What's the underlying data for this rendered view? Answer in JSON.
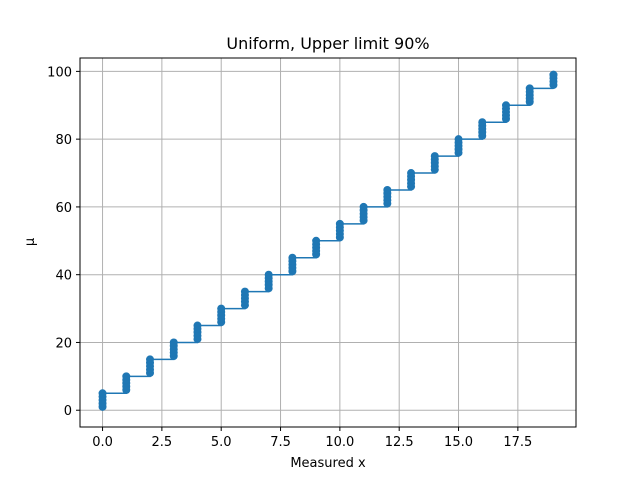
{
  "chart_data": {
    "type": "scatter",
    "title": "Uniform, Upper limit 90%",
    "xlabel": "Measured x",
    "ylabel": "μ",
    "xlim": [
      -0.95,
      19.95
    ],
    "ylim": [
      -4.95,
      103.95
    ],
    "xticks": [
      0.0,
      2.5,
      5.0,
      7.5,
      10.0,
      12.5,
      15.0,
      17.5
    ],
    "xtick_labels": [
      "0.0",
      "2.5",
      "5.0",
      "7.5",
      "10.0",
      "12.5",
      "15.0",
      "17.5"
    ],
    "yticks": [
      0,
      20,
      40,
      60,
      80,
      100
    ],
    "ytick_labels": [
      "0",
      "20",
      "40",
      "60",
      "80",
      "100"
    ],
    "grid": true,
    "series": [
      {
        "type": "line",
        "x": [
          0,
          1,
          1,
          2,
          2,
          3,
          3,
          4,
          4,
          5,
          5,
          6,
          6,
          7,
          7,
          8,
          8,
          9,
          9,
          10,
          10,
          11,
          11,
          12,
          12,
          13,
          13,
          14,
          14,
          15,
          15,
          16,
          16,
          17,
          17,
          18,
          18,
          19
        ],
        "y": [
          5,
          5,
          10,
          10,
          15,
          15,
          20,
          20,
          25,
          25,
          30,
          30,
          35,
          35,
          40,
          40,
          45,
          45,
          50,
          50,
          55,
          55,
          60,
          60,
          65,
          65,
          70,
          70,
          75,
          75,
          80,
          80,
          85,
          85,
          90,
          90,
          95,
          95
        ],
        "color": "#1f77b4"
      },
      {
        "type": "scatter",
        "x": [
          0,
          0,
          0,
          0,
          0,
          1,
          1,
          1,
          1,
          1,
          2,
          2,
          2,
          2,
          2,
          3,
          3,
          3,
          3,
          3,
          4,
          4,
          4,
          4,
          4,
          5,
          5,
          5,
          5,
          5,
          6,
          6,
          6,
          6,
          6,
          7,
          7,
          7,
          7,
          7,
          8,
          8,
          8,
          8,
          8,
          9,
          9,
          9,
          9,
          9,
          10,
          10,
          10,
          10,
          10,
          11,
          11,
          11,
          11,
          11,
          12,
          12,
          12,
          12,
          12,
          13,
          13,
          13,
          13,
          13,
          14,
          14,
          14,
          14,
          14,
          15,
          15,
          15,
          15,
          15,
          16,
          16,
          16,
          16,
          16,
          17,
          17,
          17,
          17,
          17,
          18,
          18,
          18,
          18,
          18,
          19,
          19,
          19,
          19,
          19
        ],
        "y": [
          1,
          2,
          3,
          4,
          5,
          6,
          7,
          8,
          9,
          10,
          11,
          12,
          13,
          14,
          15,
          16,
          17,
          18,
          19,
          20,
          21,
          22,
          23,
          24,
          25,
          26,
          27,
          28,
          29,
          30,
          31,
          32,
          33,
          34,
          35,
          36,
          37,
          38,
          39,
          40,
          41,
          42,
          43,
          44,
          45,
          46,
          47,
          48,
          49,
          50,
          51,
          52,
          53,
          54,
          55,
          56,
          57,
          58,
          59,
          60,
          61,
          62,
          63,
          64,
          65,
          66,
          67,
          68,
          69,
          70,
          71,
          72,
          73,
          74,
          75,
          76,
          77,
          78,
          79,
          80,
          81,
          82,
          83,
          84,
          85,
          86,
          87,
          88,
          89,
          90,
          91,
          92,
          93,
          94,
          95,
          96,
          97,
          98,
          99,
          99
        ],
        "color": "#1f77b4"
      }
    ]
  }
}
